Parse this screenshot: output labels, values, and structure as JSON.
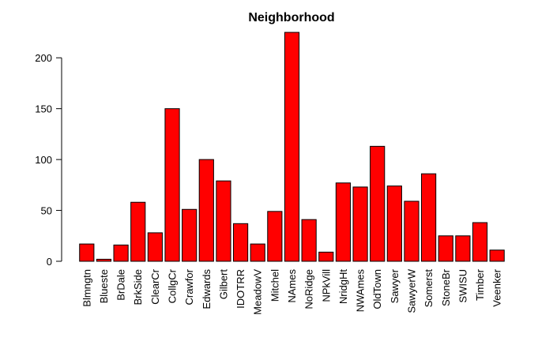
{
  "chart_data": {
    "type": "bar",
    "title": "Neighborhood",
    "xlabel": "",
    "ylabel": "",
    "categories": [
      "Blmngtn",
      "Blueste",
      "BrDale",
      "BrkSide",
      "ClearCr",
      "CollgCr",
      "Crawfor",
      "Edwards",
      "Gilbert",
      "IDOTRR",
      "MeadowV",
      "Mitchel",
      "NAmes",
      "NoRidge",
      "NPkVill",
      "NridgHt",
      "NWAmes",
      "OldTown",
      "Sawyer",
      "SawyerW",
      "Somerst",
      "StoneBr",
      "SWISU",
      "Timber",
      "Veenker"
    ],
    "values": [
      17,
      2,
      16,
      58,
      28,
      150,
      51,
      100,
      79,
      37,
      17,
      49,
      225,
      41,
      9,
      77,
      73,
      113,
      74,
      59,
      86,
      25,
      25,
      38,
      11
    ],
    "ylim": [
      0,
      225
    ],
    "yticks": [
      0,
      50,
      100,
      150,
      200
    ],
    "bar_color": "#ff0000",
    "grid": false,
    "legend": "none"
  }
}
